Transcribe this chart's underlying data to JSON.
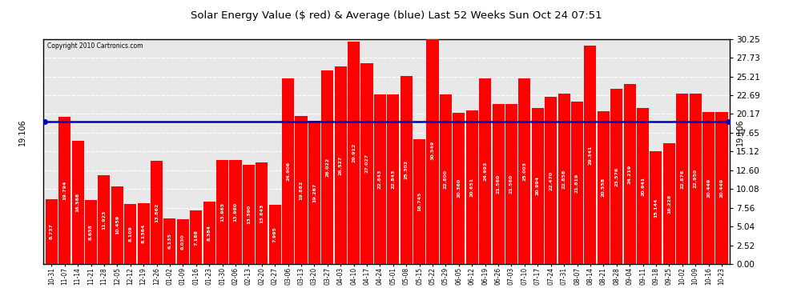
{
  "title": "Solar Energy Value ($ red) & Average (blue) Last 52 Weeks Sun Oct 24 07:51",
  "copyright": "Copyright 2010 Cartronics.com",
  "average_value": 19.106,
  "yticks": [
    0.0,
    2.52,
    5.04,
    7.56,
    10.08,
    12.6,
    15.12,
    17.65,
    20.17,
    22.69,
    25.21,
    27.73,
    30.25
  ],
  "bar_color": "#ff0000",
  "avg_line_color": "#0000bb",
  "background_color": "#ffffff",
  "plot_bg_color": "#e8e8e8",
  "categories": [
    "10-31",
    "11-07",
    "11-14",
    "11-21",
    "11-28",
    "12-05",
    "12-12",
    "12-19",
    "12-26",
    "01-02",
    "01-09",
    "01-16",
    "01-23",
    "01-30",
    "02-06",
    "02-13",
    "02-20",
    "02-27",
    "03-06",
    "03-13",
    "03-20",
    "03-27",
    "04-03",
    "04-10",
    "04-17",
    "04-24",
    "05-01",
    "05-08",
    "05-15",
    "05-22",
    "05-29",
    "06-05",
    "06-12",
    "06-19",
    "06-26",
    "07-03",
    "07-10",
    "07-17",
    "07-24",
    "07-31",
    "08-07",
    "08-14",
    "08-21",
    "08-28",
    "09-04",
    "09-11",
    "09-18",
    "09-25",
    "10-02",
    "10-09",
    "10-16",
    "10-23"
  ],
  "values": [
    8.737,
    19.794,
    16.568,
    8.658,
    11.923,
    10.459,
    8.109,
    8.1364,
    13.862,
    6.135,
    6.03,
    7.188,
    8.384,
    13.965,
    13.98,
    13.39,
    13.643,
    7.995,
    24.906,
    19.882,
    19.267,
    26.022,
    26.527,
    29.912,
    27.027,
    22.843,
    22.843,
    25.302,
    16.745,
    30.549,
    22.8,
    20.36,
    20.651,
    24.993,
    21.56,
    21.56,
    25.003,
    20.994,
    22.47,
    22.858,
    21.819,
    29.341,
    20.558,
    23.576,
    24.219,
    20.941,
    15.144,
    16.228,
    22.876,
    22.95,
    20.449,
    20.449
  ],
  "value_labels": [
    "8.737",
    "19.794",
    "16.568",
    "8.658",
    "11.923",
    "10.459",
    "8.109",
    "8.1364",
    "13.862",
    "6.135",
    "6.030",
    "7.188",
    "8.384",
    "13.965",
    "13.980",
    "13.390",
    "13.643",
    "7.995",
    "24.906",
    "19.882",
    "19.267",
    "26.022",
    "26.527",
    "29.912",
    "27.027",
    "22.843",
    "22.843",
    "25.302",
    "16.745",
    "30.549",
    "22.800",
    "20.360",
    "20.651",
    "24.993",
    "21.560",
    "21.560",
    "25.003",
    "20.994",
    "22.470",
    "22.858",
    "21.819",
    "29.341",
    "20.558",
    "23.576",
    "24.219",
    "20.941",
    "15.144",
    "16.228",
    "22.876",
    "22.950",
    "20.449",
    "20.449"
  ]
}
